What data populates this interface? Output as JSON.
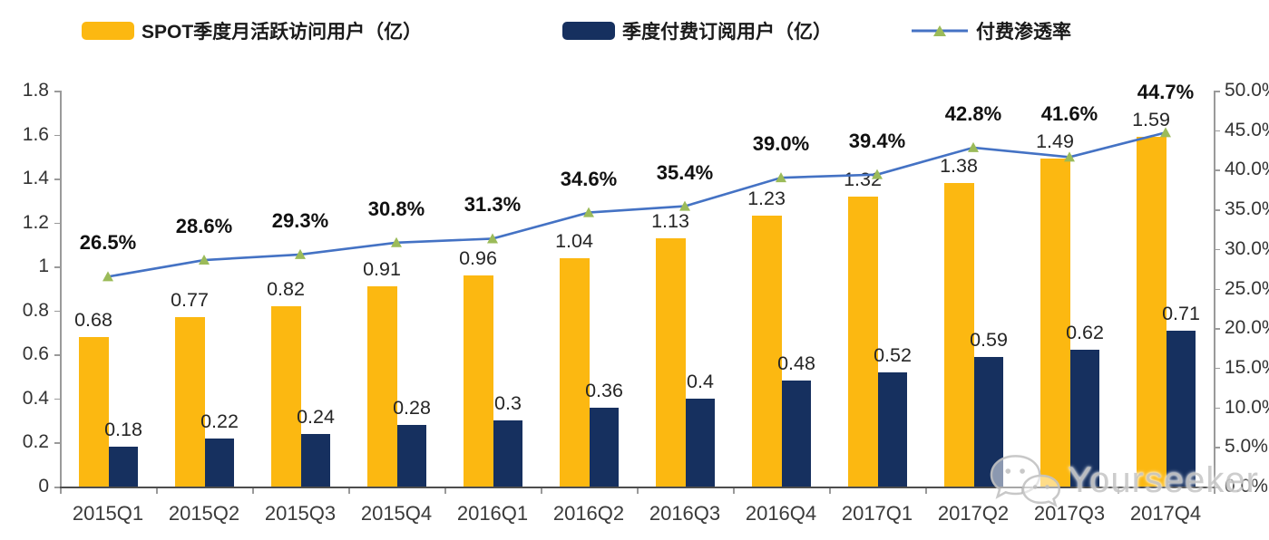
{
  "legend": {
    "items": [
      {
        "label": "SPOT季度月活跃访问用户（亿）",
        "type": "bar",
        "color": "#FCB811"
      },
      {
        "label": "季度付费订阅用户（亿）",
        "type": "bar",
        "color": "#16305F"
      },
      {
        "label": "付费渗透率",
        "type": "line",
        "color": "#4472C4",
        "marker_color": "#9BBB59"
      }
    ]
  },
  "chart_data": {
    "type": "bar",
    "subtype": "bar-line-combo",
    "title": "",
    "xlabel": "",
    "ylabel": "",
    "grid": false,
    "legend_position": "top",
    "categories": [
      "2015Q1",
      "2015Q2",
      "2015Q3",
      "2015Q4",
      "2016Q1",
      "2016Q2",
      "2016Q3",
      "2016Q4",
      "2017Q1",
      "2017Q2",
      "2017Q3",
      "2017Q4"
    ],
    "series": [
      {
        "name": "SPOT季度月活跃访问用户（亿）",
        "type": "bar",
        "axis": "left",
        "color": "#FCB811",
        "values": [
          0.68,
          0.77,
          0.82,
          0.91,
          0.96,
          1.04,
          1.13,
          1.23,
          1.32,
          1.38,
          1.49,
          1.59
        ],
        "labels": [
          "0.68",
          "0.77",
          "0.82",
          "0.91",
          "0.96",
          "1.04",
          "1.13",
          "1.23",
          "1.32",
          "1.38",
          "1.49",
          "1.59"
        ]
      },
      {
        "name": "季度付费订阅用户（亿）",
        "type": "bar",
        "axis": "left",
        "color": "#16305F",
        "values": [
          0.18,
          0.22,
          0.24,
          0.28,
          0.3,
          0.36,
          0.4,
          0.48,
          0.52,
          0.59,
          0.62,
          0.71
        ],
        "labels": [
          "0.18",
          "0.22",
          "0.24",
          "0.28",
          "0.3",
          "0.36",
          "0.4",
          "0.48",
          "0.52",
          "0.59",
          "0.62",
          "0.71"
        ]
      },
      {
        "name": "付费渗透率",
        "type": "line",
        "axis": "right",
        "color": "#4472C4",
        "marker": "triangle",
        "marker_color": "#9BBB59",
        "values": [
          26.5,
          28.6,
          29.3,
          30.8,
          31.3,
          34.6,
          35.4,
          39.0,
          39.4,
          42.8,
          41.6,
          44.7
        ],
        "labels": [
          "26.5%",
          "28.6%",
          "29.3%",
          "30.8%",
          "31.3%",
          "34.6%",
          "35.4%",
          "39.0%",
          "39.4%",
          "42.8%",
          "41.6%",
          "44.7%"
        ]
      }
    ],
    "left_axis": {
      "min": 0,
      "max": 1.8,
      "step": 0.2,
      "tick_labels": [
        "0",
        "0.2",
        "0.4",
        "0.6",
        "0.8",
        "1",
        "1.2",
        "1.4",
        "1.6",
        "1.8"
      ]
    },
    "right_axis": {
      "min": 0,
      "max": 50,
      "step": 5,
      "tick_labels": [
        "0.0%",
        "5.0%",
        "10.0%",
        "15.0%",
        "20.0%",
        "25.0%",
        "30.0%",
        "35.0%",
        "40.0%",
        "45.0%",
        "50.0%"
      ]
    }
  },
  "watermark": {
    "text": "Yourseeker",
    "icon": "wechat-icon"
  }
}
